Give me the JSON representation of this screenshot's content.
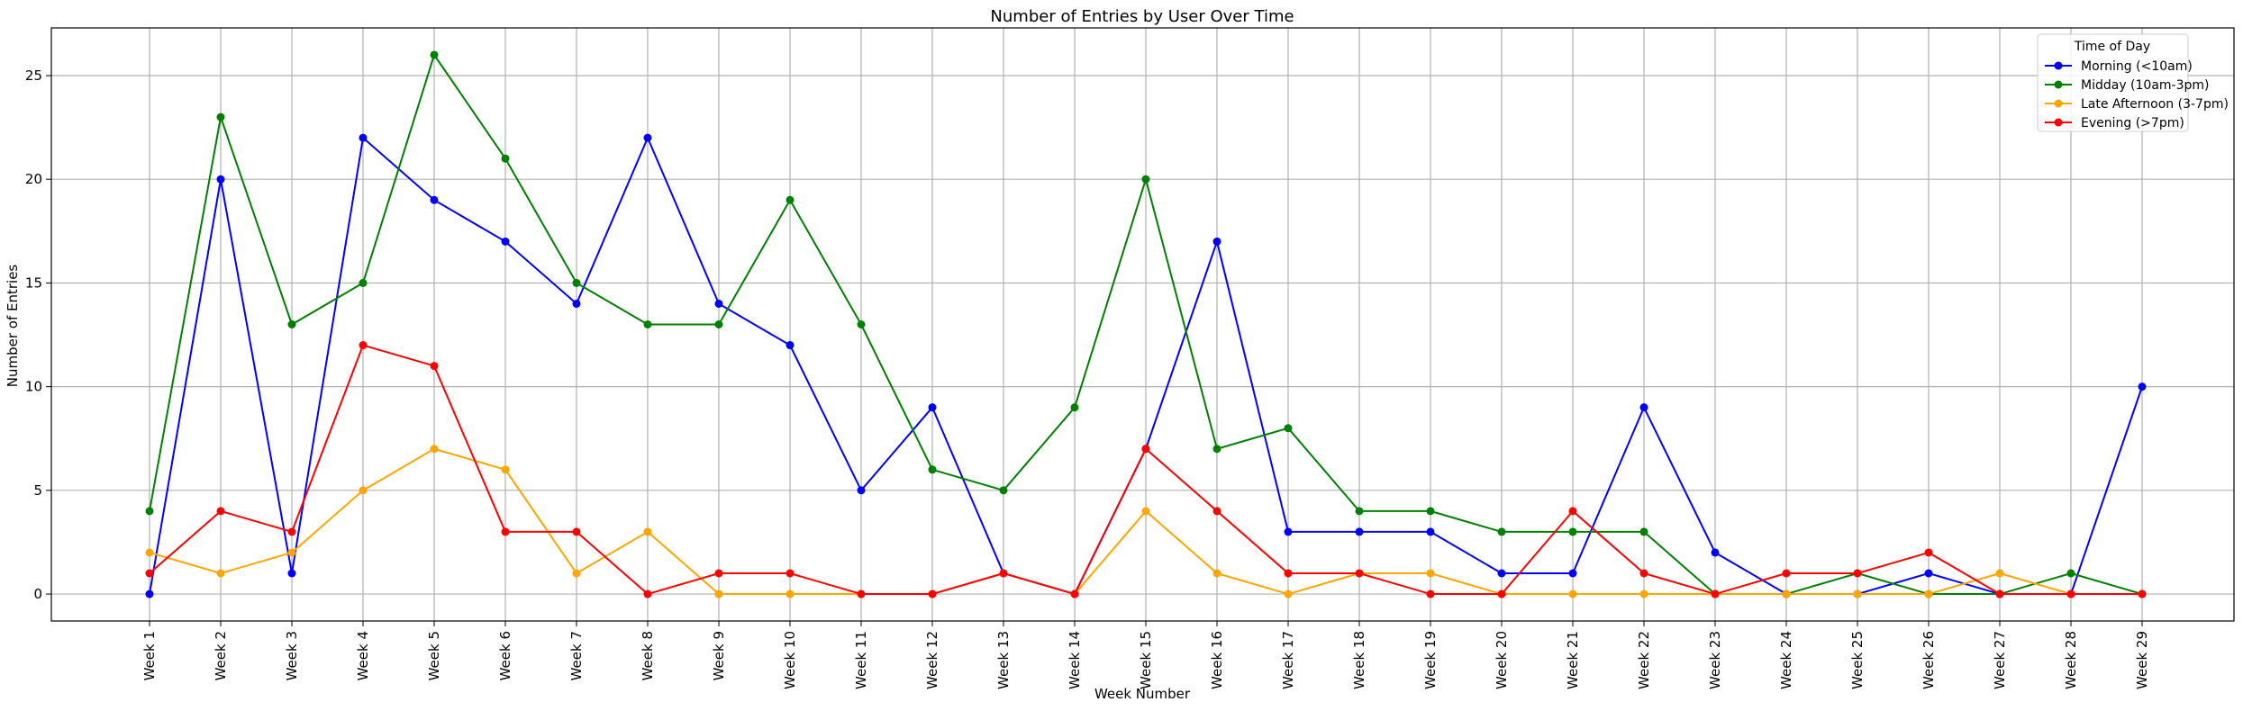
{
  "chart_data": {
    "type": "line",
    "title": "Number of Entries by User Over Time",
    "xlabel": "Week Number",
    "ylabel": "Number of Entries",
    "categories": [
      "Week 1",
      "Week 2",
      "Week 3",
      "Week 4",
      "Week 5",
      "Week 6",
      "Week 7",
      "Week 8",
      "Week 9",
      "Week 10",
      "Week 11",
      "Week 12",
      "Week 13",
      "Week 14",
      "Week 15",
      "Week 16",
      "Week 17",
      "Week 18",
      "Week 19",
      "Week 20",
      "Week 21",
      "Week 22",
      "Week 23",
      "Week 24",
      "Week 25",
      "Week 26",
      "Week 27",
      "Week 28",
      "Week 29"
    ],
    "yticks": [
      0,
      5,
      10,
      15,
      20,
      25
    ],
    "ylim": [
      -1.3,
      27.3
    ],
    "grid": true,
    "legend": {
      "title": "Time of Day",
      "placement": "top-right"
    },
    "series": [
      {
        "name": "Morning (<10am)",
        "color": "#0000ff",
        "values": [
          0,
          20,
          1,
          22,
          19,
          17,
          14,
          22,
          14,
          12,
          5,
          9,
          1,
          0,
          7,
          17,
          3,
          3,
          3,
          1,
          1,
          9,
          2,
          0,
          0,
          1,
          0,
          0,
          10
        ]
      },
      {
        "name": "Midday (10am-3pm)",
        "color": "#008000",
        "values": [
          4,
          23,
          13,
          15,
          26,
          21,
          15,
          13,
          13,
          19,
          13,
          6,
          5,
          9,
          20,
          7,
          8,
          4,
          4,
          3,
          3,
          3,
          0,
          0,
          1,
          0,
          0,
          1,
          0
        ]
      },
      {
        "name": "Late Afternoon (3-7pm)",
        "color": "#ffa500",
        "values": [
          2,
          1,
          2,
          5,
          7,
          6,
          1,
          3,
          0,
          0,
          0,
          0,
          1,
          0,
          4,
          1,
          0,
          1,
          1,
          0,
          0,
          0,
          0,
          0,
          0,
          0,
          1,
          0,
          0
        ]
      },
      {
        "name": "Evening (>7pm)",
        "color": "#ff0000",
        "values": [
          1,
          4,
          3,
          12,
          11,
          3,
          3,
          0,
          1,
          1,
          0,
          0,
          1,
          0,
          7,
          4,
          1,
          1,
          0,
          0,
          4,
          1,
          0,
          1,
          1,
          2,
          0,
          0,
          0
        ]
      }
    ]
  }
}
